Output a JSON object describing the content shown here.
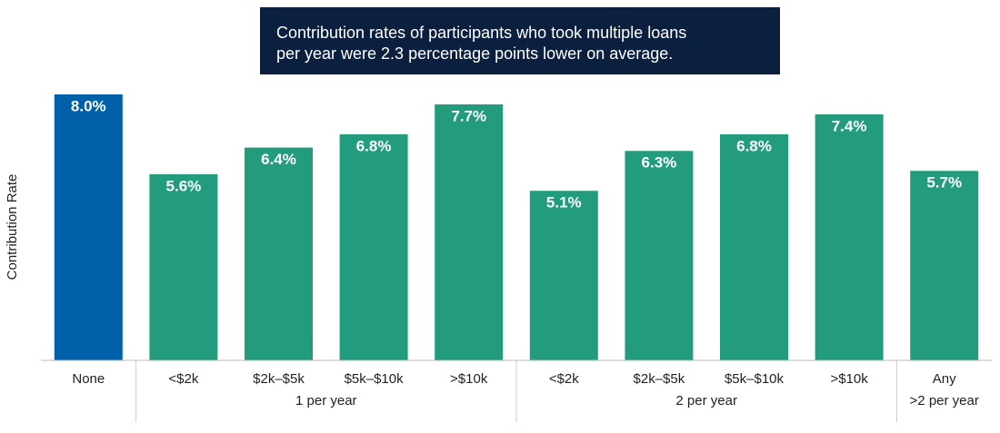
{
  "chart_data": {
    "type": "bar",
    "annotation": [
      "Contribution rates of participants who took multiple loans",
      "per year were 2.3 percentage points lower on average."
    ],
    "y_label": "Contribution Rate",
    "ylim": [
      0,
      8
    ],
    "groups": [
      {
        "name": null,
        "color": "#0060a9",
        "categories": [
          "None"
        ],
        "values": [
          8.0
        ],
        "value_labels": [
          "8.0%"
        ]
      },
      {
        "name": "1 per year",
        "color": "#239c7e",
        "categories": [
          "<$2k",
          "$2k–$5k",
          "$5k–$10k",
          ">$10k"
        ],
        "values": [
          5.6,
          6.4,
          6.8,
          7.7
        ],
        "value_labels": [
          "5.6%",
          "6.4%",
          "6.8%",
          "7.7%"
        ]
      },
      {
        "name": "2 per year",
        "color": "#239c7e",
        "categories": [
          "<$2k",
          "$2k–$5k",
          "$5k–$10k",
          ">$10k"
        ],
        "values": [
          5.1,
          6.3,
          6.8,
          7.4
        ],
        "value_labels": [
          "5.1%",
          "6.3%",
          "6.8%",
          "7.4%"
        ]
      },
      {
        "name": ">2 per year",
        "color": "#239c7e",
        "categories": [
          "Any"
        ],
        "values": [
          5.7
        ],
        "value_labels": [
          "5.7%"
        ]
      }
    ]
  }
}
